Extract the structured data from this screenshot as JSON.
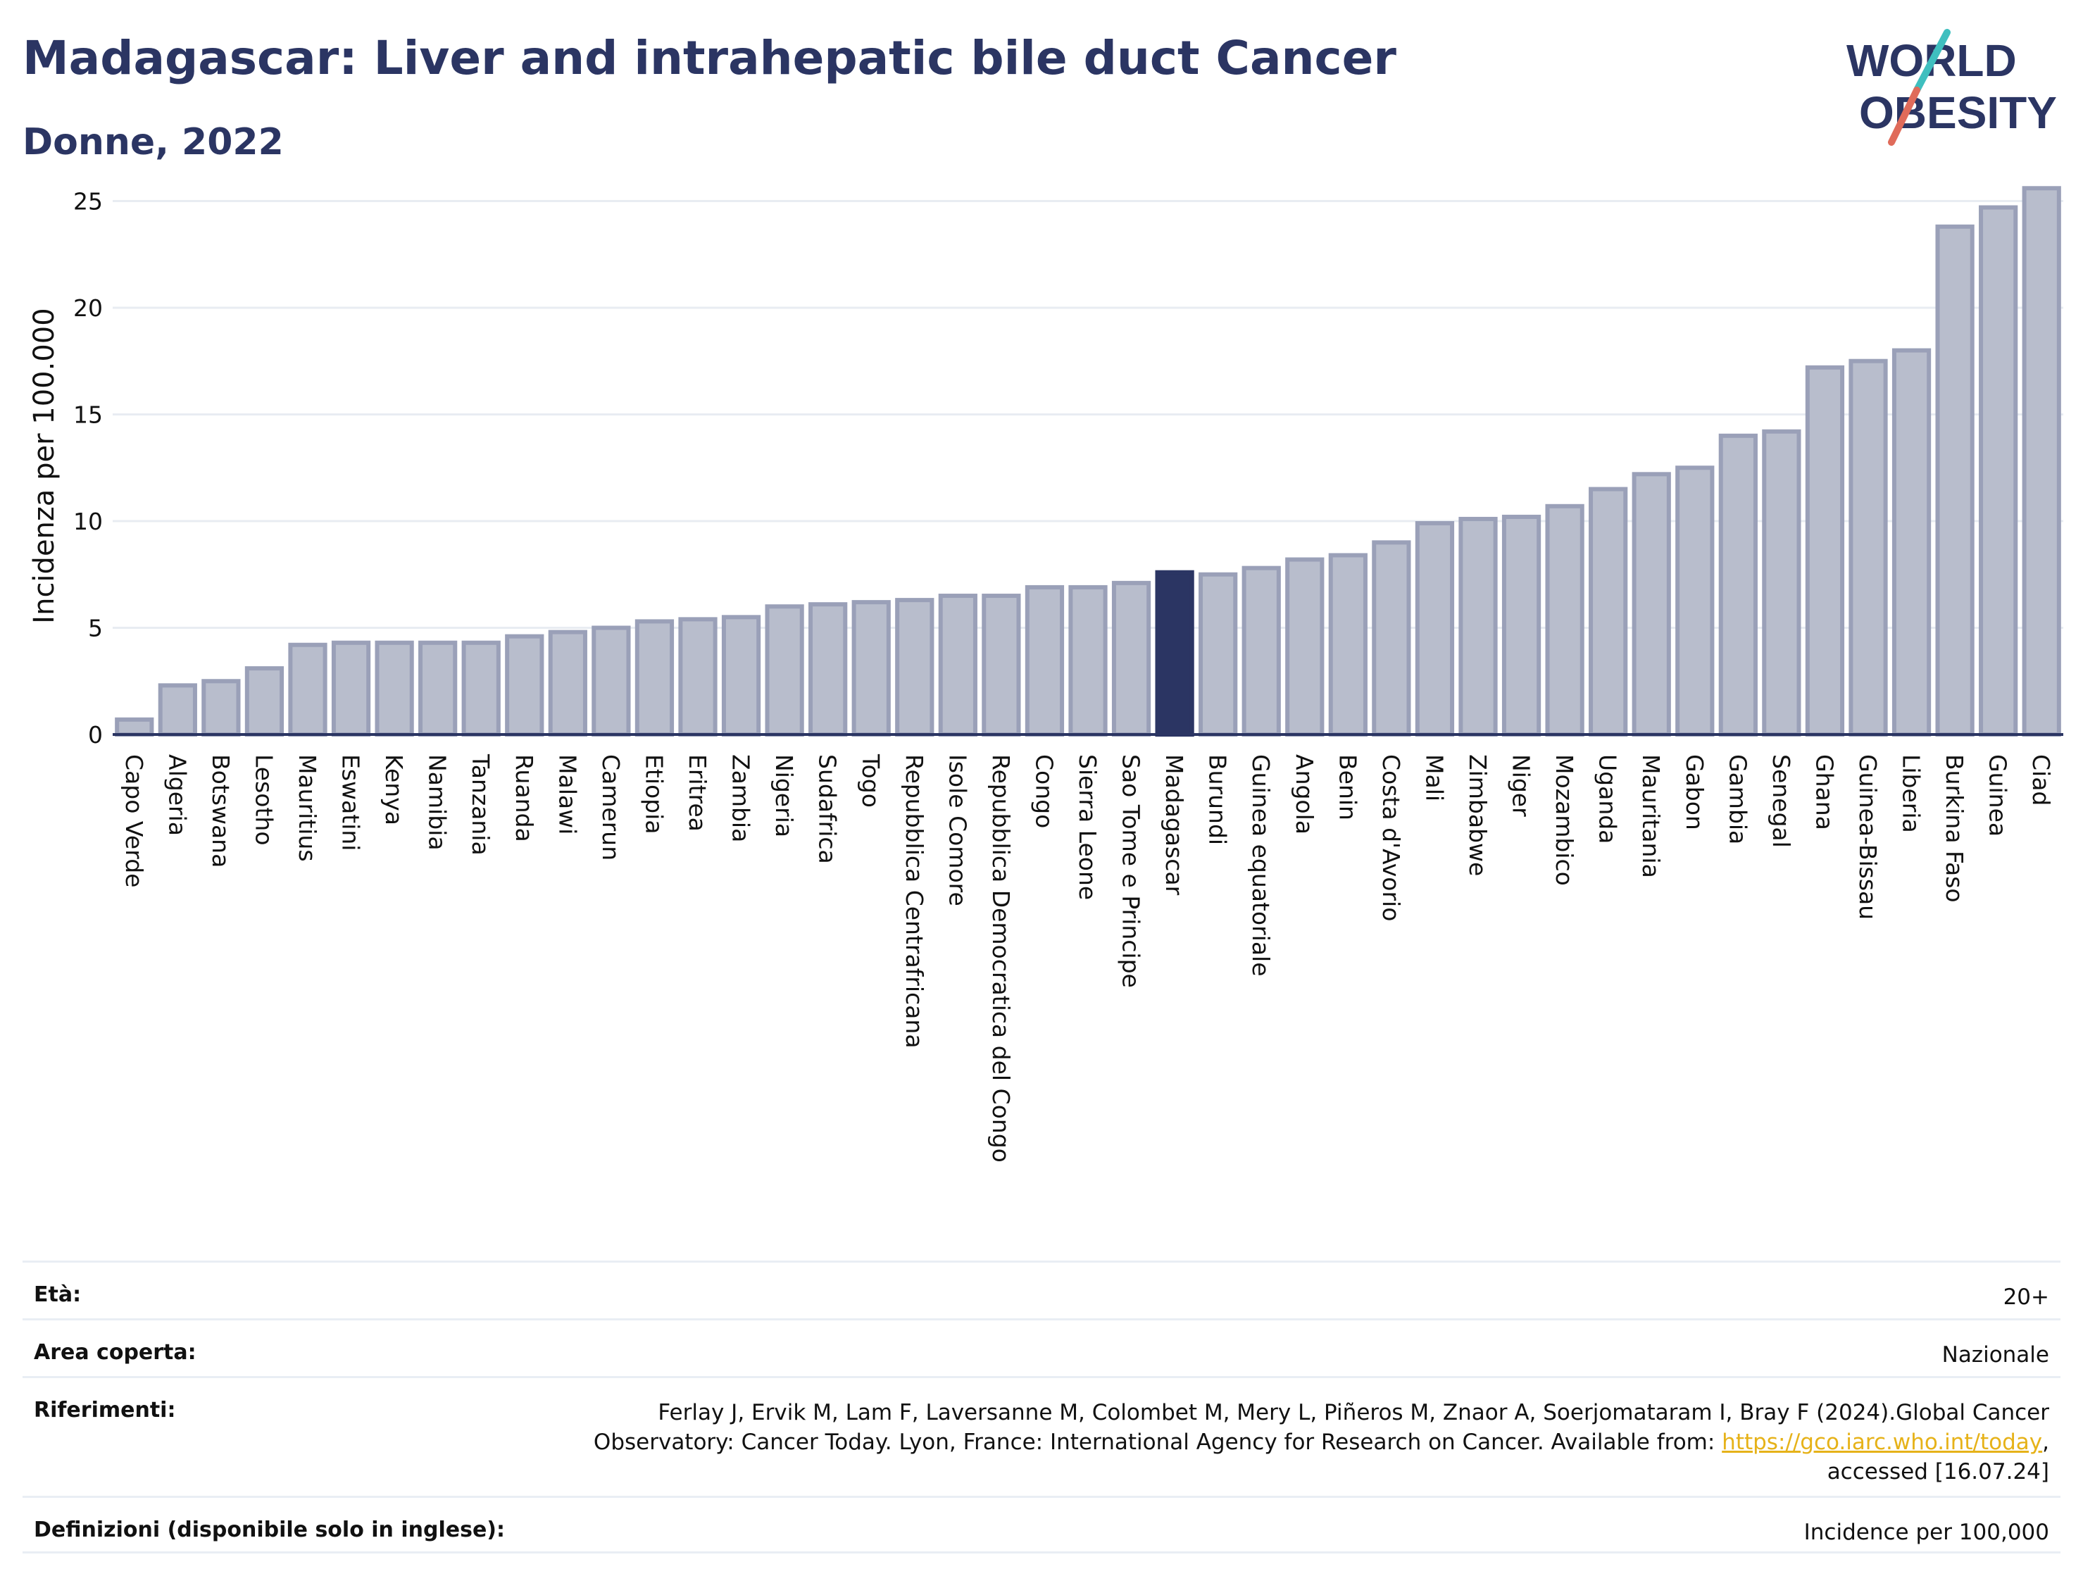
{
  "header": {
    "title": "Madagascar: Liver and intrahepatic bile duct Cancer",
    "subtitle": "Donne, 2022"
  },
  "logo": {
    "line1": "WORLD",
    "line2": "OBESITY",
    "accent_colors": [
      "#3fbfbf",
      "#e06b5a"
    ]
  },
  "chart_data": {
    "type": "bar",
    "ylabel": "Incidenza per 100.000",
    "ylim": [
      0,
      26.5
    ],
    "yticks": [
      0,
      5,
      10,
      15,
      20,
      25
    ],
    "grid": true,
    "highlight": "Madagascar",
    "colors": {
      "bar": "#b8bdcc",
      "bar_edge": "#9aa0b8",
      "highlight": "#2b3563"
    },
    "categories": [
      "Capo Verde",
      "Algeria",
      "Botswana",
      "Lesotho",
      "Mauritius",
      "Eswatini",
      "Kenya",
      "Namibia",
      "Tanzania",
      "Ruanda",
      "Malawi",
      "Camerun",
      "Etiopia",
      "Eritrea",
      "Zambia",
      "Nigeria",
      "Sudafrica",
      "Togo",
      "Repubblica Centrafricana",
      "Isole Comore",
      "Repubblica Democratica del Congo",
      "Congo",
      "Sierra Leone",
      "Sao Tome e Principe",
      "Madagascar",
      "Burundi",
      "Guinea equatoriale",
      "Angola",
      "Benin",
      "Costa d'Avorio",
      "Mali",
      "Zimbabwe",
      "Niger",
      "Mozambico",
      "Uganda",
      "Mauritania",
      "Gabon",
      "Gambia",
      "Senegal",
      "Ghana",
      "Guinea-Bissau",
      "Liberia",
      "Burkina Faso",
      "Guinea",
      "Ciad"
    ],
    "values": [
      0.7,
      2.3,
      2.5,
      3.1,
      4.2,
      4.3,
      4.3,
      4.3,
      4.3,
      4.6,
      4.8,
      5.0,
      5.3,
      5.4,
      5.5,
      6.0,
      6.1,
      6.2,
      6.3,
      6.5,
      6.5,
      6.9,
      6.9,
      7.1,
      7.6,
      7.5,
      7.8,
      8.2,
      8.4,
      9.0,
      9.9,
      10.1,
      10.2,
      10.7,
      11.5,
      12.2,
      12.5,
      14.0,
      14.2,
      17.2,
      17.5,
      18.0,
      23.8,
      24.7,
      25.6
    ]
  },
  "meta": {
    "rows": [
      {
        "label": "Età:",
        "value": "20+"
      },
      {
        "label": "Area coperta:",
        "value": "Nazionale"
      },
      {
        "label": "Riferimenti:",
        "value_line1": "Ferlay J, Ervik M, Lam F, Laversanne M, Colombet M, Mery L, Piñeros M, Znaor A, Soerjomataram I, Bray F (2024).Global Cancer",
        "value_line2_pre": "Observatory: Cancer Today. Lyon, France: International Agency for Research on Cancer. Available from: ",
        "value_link": "https://gco.iarc.who.int/today",
        "value_line2_post": ",",
        "value_line3": "accessed [16.07.24]"
      },
      {
        "label": "Definizioni (disponibile solo in inglese):",
        "value": "Incidence per 100,000"
      }
    ]
  }
}
